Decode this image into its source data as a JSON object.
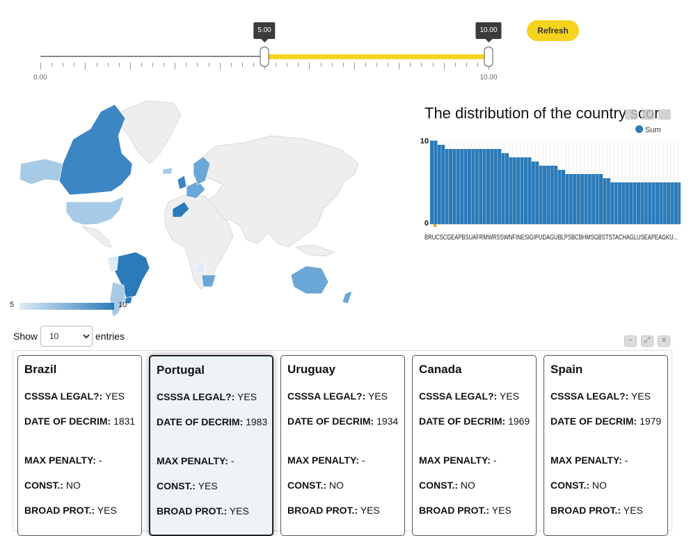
{
  "slider": {
    "low_value": "5.00",
    "high_value": "10.00",
    "min_label": "0.00",
    "max_label": "10.00",
    "selected_range": [
      5,
      10
    ],
    "range": [
      0,
      10
    ],
    "accent_color": "#f5d31f"
  },
  "refresh_label": "Refresh",
  "map": {
    "legend_min": "5",
    "legend_max": "10",
    "color_low": "#deebf7",
    "color_high": "#2b7bba"
  },
  "chart": {
    "title": "The distribution of the country scor",
    "legend": "Sum",
    "color": "#2b7bba",
    "x_labels_text": "BRUCSCGEAPBSUAFRMWRSSWNFINESIGIPUDAGUBLPSBCBHMSGBSTSTACHAGLUSEAPEAGKU..."
  },
  "chart_data": {
    "type": "bar",
    "title": "The distribution of the country scor",
    "legend": [
      "Sum"
    ],
    "ylim": [
      0,
      10
    ],
    "yticks": [
      "0",
      "10"
    ],
    "series": [
      {
        "name": "Sum",
        "values": [
          10,
          10,
          9.5,
          9.5,
          9,
          9,
          9,
          9,
          9,
          9,
          9,
          9,
          9,
          9,
          9,
          9,
          9,
          9,
          9,
          8.5,
          8.5,
          8,
          8,
          8,
          8,
          8,
          8,
          7.5,
          7.5,
          7,
          7,
          7,
          7,
          7,
          6.5,
          6.5,
          6,
          6,
          6,
          6,
          6,
          6,
          6,
          6,
          6,
          6,
          5.5,
          5.5,
          5,
          5,
          5,
          5,
          5,
          5,
          5,
          5,
          5,
          5,
          5,
          5,
          5,
          5,
          5,
          5,
          5,
          5,
          5,
          5
        ]
      }
    ]
  },
  "table": {
    "show_label": "Show",
    "entries_value": "10",
    "entries_label": "entries",
    "field_labels": {
      "legal": "CSSSA LEGAL?:",
      "decrim": "DATE OF DECRIM:",
      "penalty": "MAX PENALTY:",
      "const": "CONST.:",
      "broad": "BROAD PROT.:"
    },
    "cards": [
      {
        "country": "Brazil",
        "legal": "YES",
        "decrim": "1831",
        "penalty": "-",
        "const": "NO",
        "broad": "YES"
      },
      {
        "country": "Portugal",
        "legal": "YES",
        "decrim": "1983",
        "penalty": "-",
        "const": "YES",
        "broad": "YES"
      },
      {
        "country": "Uruguay",
        "legal": "YES",
        "decrim": "1934",
        "penalty": "-",
        "const": "NO",
        "broad": "YES"
      },
      {
        "country": "Canada",
        "legal": "YES",
        "decrim": "1969",
        "penalty": "-",
        "const": "NO",
        "broad": "YES"
      },
      {
        "country": "Spain",
        "legal": "YES",
        "decrim": "1979",
        "penalty": "-",
        "const": "NO",
        "broad": "YES"
      }
    ]
  }
}
